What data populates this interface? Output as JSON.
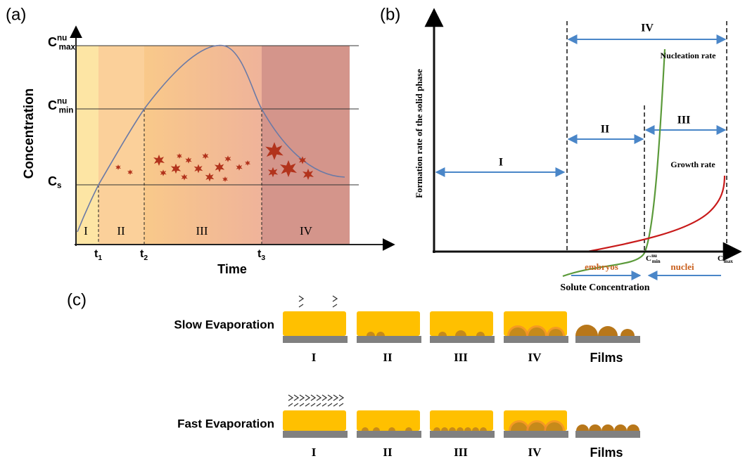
{
  "panel_a": {
    "label": "(a)",
    "y_axis": "Concentration",
    "x_axis": "Time",
    "levels": [
      {
        "base": "C",
        "sup": "nu",
        "sub": "max"
      },
      {
        "base": "C",
        "sup": "nu",
        "sub": "min"
      },
      {
        "base": "C",
        "sub": "s"
      }
    ],
    "times": [
      {
        "base": "t",
        "sub": "1"
      },
      {
        "base": "t",
        "sub": "2"
      },
      {
        "base": "t",
        "sub": "3"
      }
    ],
    "regions": [
      "I",
      "II",
      "III",
      "IV"
    ]
  },
  "panel_b": {
    "label": "(b)",
    "y_axis": "Formation rate of the solid phase",
    "x_axis": "Solute Concentration",
    "ranges": [
      "I",
      "II",
      "III",
      "IV"
    ],
    "nucleation": "Nucleation rate",
    "growth": "Growth rate",
    "embryos": "embryos",
    "nuclei": "nuclei",
    "c_min": {
      "base": "C",
      "sup": "nu",
      "sub": "min"
    },
    "c_max": {
      "base": "C",
      "sup": "nu",
      "sub": "max"
    }
  },
  "panel_c": {
    "label": "(c)",
    "rows": [
      {
        "name": "Slow Evaporation",
        "stages": [
          "I",
          "II",
          "III",
          "IV",
          "Films"
        ]
      },
      {
        "name": "Fast Evaporation",
        "stages": [
          "I",
          "II",
          "III",
          "IV",
          "Films"
        ]
      }
    ]
  }
}
